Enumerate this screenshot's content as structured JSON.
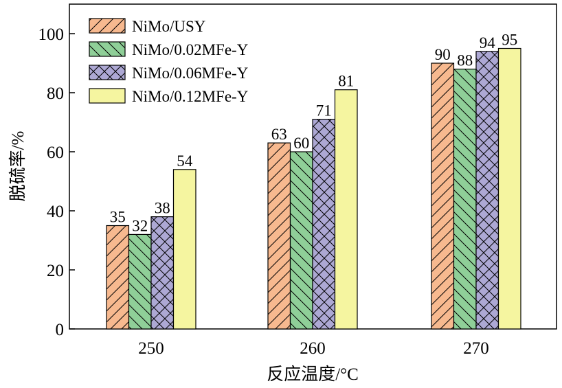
{
  "chart_data": {
    "type": "bar",
    "categories": [
      "250",
      "260",
      "270"
    ],
    "series": [
      {
        "name": "NiMo/USY",
        "values": [
          35,
          63,
          90
        ],
        "color": "#f7b98f",
        "hatch": "forward-diagonal"
      },
      {
        "name": "NiMo/0.02MFe-Y",
        "values": [
          32,
          60,
          88
        ],
        "color": "#8fcf98",
        "hatch": "back-diagonal"
      },
      {
        "name": "NiMo/0.06MFe-Y",
        "values": [
          38,
          71,
          94
        ],
        "color": "#ada8d4",
        "hatch": "crosshatch"
      },
      {
        "name": "NiMo/0.12MFe-Y",
        "values": [
          54,
          81,
          95
        ],
        "color": "#f5f5a0",
        "hatch": "none"
      }
    ],
    "data_labels": [
      [
        "35",
        "63",
        "90"
      ],
      [
        "32",
        "60",
        "88"
      ],
      [
        "38",
        "71",
        "94"
      ],
      [
        "54",
        "81",
        "95"
      ]
    ],
    "xlabel": "反应温度/°C",
    "ylabel": "脱硫率/%",
    "ylim": [
      0,
      110
    ],
    "yticks": [
      "0",
      "20",
      "40",
      "60",
      "80",
      "100"
    ],
    "ytick_values": [
      0,
      20,
      40,
      60,
      80,
      100
    ],
    "legend_position": "top-left",
    "grid": false
  }
}
